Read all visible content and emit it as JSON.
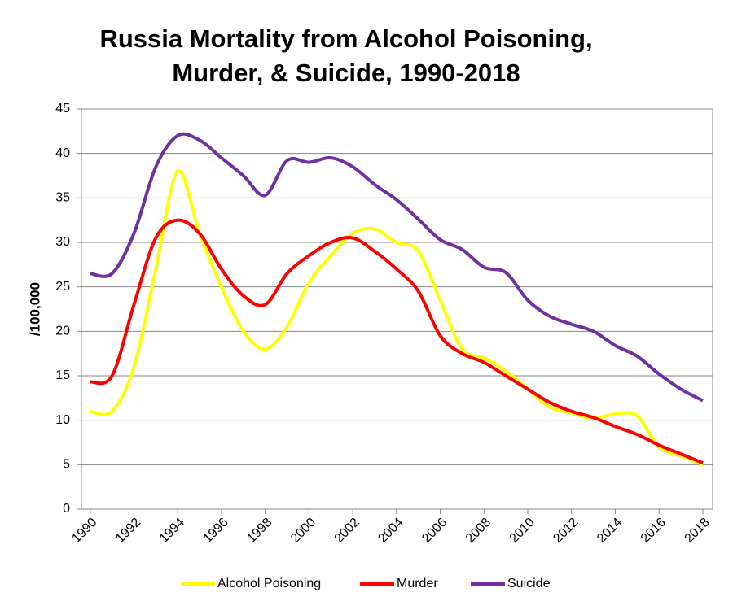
{
  "chart_data": {
    "type": "line",
    "title": [
      "Russia Mortality from Alcohol Poisoning,",
      "Murder, & Suicide, 1990-2018"
    ],
    "y_label": "/100,000",
    "x": [
      1990,
      1991,
      1992,
      1993,
      1994,
      1995,
      1996,
      1997,
      1998,
      1999,
      2000,
      2001,
      2002,
      2003,
      2004,
      2005,
      2006,
      2007,
      2008,
      2009,
      2010,
      2011,
      2012,
      2013,
      2014,
      2015,
      2016,
      2017,
      2018
    ],
    "series": [
      {
        "name": "Alcohol Poisoning",
        "color": "#ffff00",
        "values": [
          11,
          11,
          16,
          27,
          38,
          31,
          25,
          20,
          18,
          20.5,
          25.5,
          28.5,
          31,
          31.5,
          30,
          29,
          23.5,
          18,
          17,
          15.5,
          13.5,
          11.5,
          10.8,
          10.2,
          10.7,
          10.5,
          7,
          6,
          5
        ]
      },
      {
        "name": "Murder",
        "color": "#ff0000",
        "values": [
          14.3,
          15,
          23,
          30.5,
          32.5,
          31,
          27,
          24,
          23,
          26.5,
          28.5,
          30,
          30.5,
          29,
          27,
          24.5,
          19.5,
          17.5,
          16.5,
          15,
          13.5,
          12,
          11,
          10.3,
          9.3,
          8.4,
          7.2,
          6.2,
          5.2
        ]
      },
      {
        "name": "Suicide",
        "color": "#7030a0",
        "values": [
          26.5,
          26.5,
          31,
          38.5,
          42,
          41.5,
          39.5,
          37.5,
          35.3,
          39.2,
          39,
          39.5,
          38.5,
          36.5,
          34.8,
          32.6,
          30.3,
          29.2,
          27.2,
          26.6,
          23.5,
          21.7,
          20.8,
          20,
          18.4,
          17.2,
          15.2,
          13.5,
          12.2
        ]
      }
    ],
    "xlim": [
      1989.6,
      2018.45
    ],
    "xticks": [
      1990,
      1992,
      1994,
      1996,
      1998,
      2000,
      2002,
      2004,
      2006,
      2008,
      2010,
      2012,
      2014,
      2016,
      2018
    ],
    "ylim": [
      0,
      45
    ],
    "yticks": [
      0,
      5,
      10,
      15,
      20,
      25,
      30,
      35,
      40,
      45
    ],
    "grid": true,
    "legend": "bottom"
  }
}
